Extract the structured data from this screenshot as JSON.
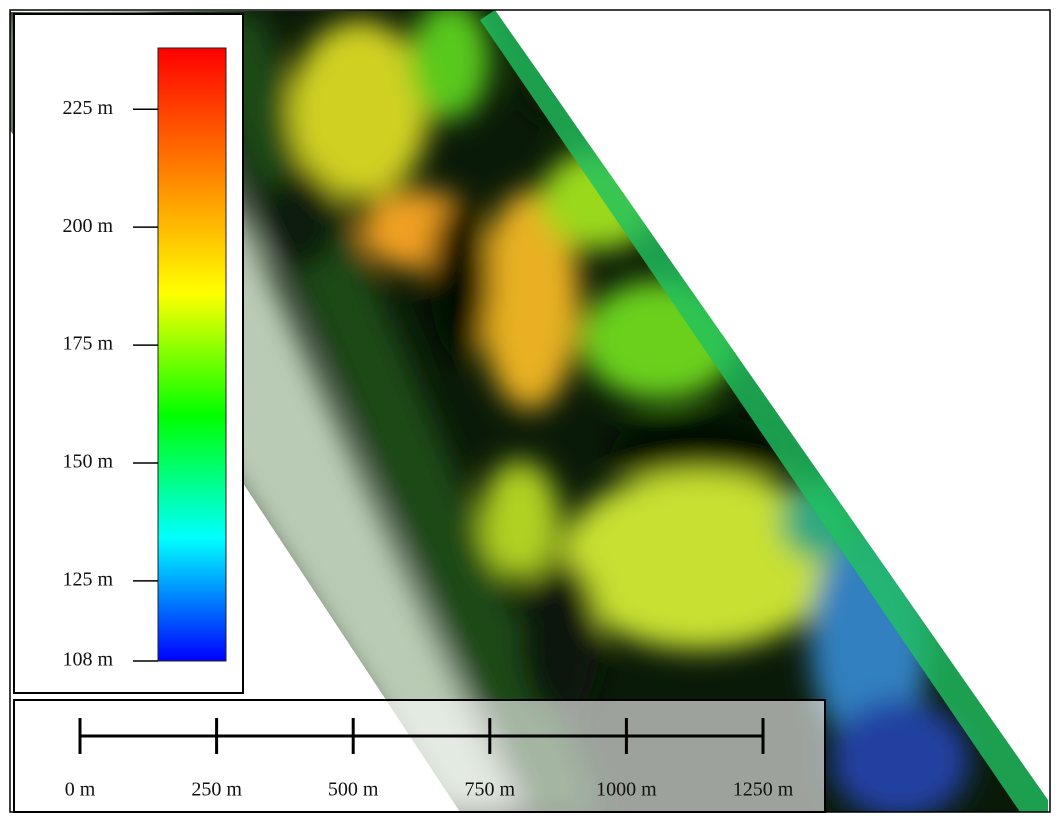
{
  "legend": {
    "range": [
      108,
      238
    ],
    "colors": [
      "#0000ff",
      "#00ffff",
      "#00ff00",
      "#ffff00",
      "#ff8000",
      "#ff0000"
    ],
    "ticks": [
      {
        "value": 225,
        "label": "225 m"
      },
      {
        "value": 200,
        "label": "200 m"
      },
      {
        "value": 175,
        "label": "175 m"
      },
      {
        "value": 150,
        "label": "150 m"
      },
      {
        "value": 125,
        "label": "125 m"
      },
      {
        "value": 108,
        "label": "108 m"
      }
    ]
  },
  "scale_bar": {
    "range": [
      0,
      1250
    ],
    "ticks": [
      {
        "value": 0,
        "label": "0 m"
      },
      {
        "value": 250,
        "label": "250 m"
      },
      {
        "value": 500,
        "label": "500 m"
      },
      {
        "value": 750,
        "label": "750 m"
      },
      {
        "value": 1000,
        "label": "1000 m"
      },
      {
        "value": 1250,
        "label": "1250 m"
      }
    ]
  }
}
